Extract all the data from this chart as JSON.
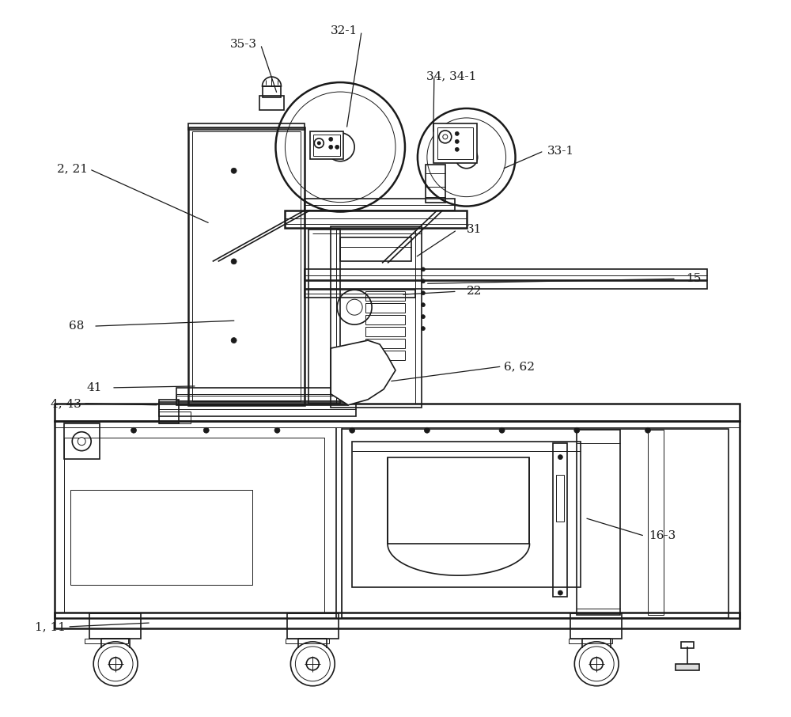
{
  "bg_color": "#ffffff",
  "line_color": "#1a1a1a",
  "lw_main": 1.8,
  "lw_med": 1.2,
  "lw_thin": 0.7,
  "labels": [
    [
      "35-3",
      307,
      55
    ],
    [
      "32-1",
      435,
      38
    ],
    [
      "34, 34-1",
      571,
      95
    ],
    [
      "33-1",
      710,
      190
    ],
    [
      "2, 21",
      90,
      213
    ],
    [
      "31",
      600,
      290
    ],
    [
      "15",
      878,
      352
    ],
    [
      "22",
      600,
      368
    ],
    [
      "68",
      95,
      412
    ],
    [
      "41",
      118,
      490
    ],
    [
      "6, 62",
      657,
      463
    ],
    [
      "4, 43",
      82,
      510
    ],
    [
      "16-3",
      838,
      678
    ],
    [
      "1, 11",
      62,
      793
    ]
  ],
  "leader_lines": [
    [
      307,
      55,
      350,
      118
    ],
    [
      435,
      38,
      438,
      162
    ],
    [
      571,
      95,
      548,
      168
    ],
    [
      710,
      190,
      635,
      213
    ],
    [
      90,
      213,
      265,
      282
    ],
    [
      600,
      290,
      525,
      325
    ],
    [
      878,
      352,
      538,
      358
    ],
    [
      600,
      368,
      507,
      372
    ],
    [
      95,
      412,
      298,
      405
    ],
    [
      118,
      490,
      248,
      488
    ],
    [
      657,
      463,
      492,
      482
    ],
    [
      82,
      510,
      200,
      512
    ],
    [
      838,
      678,
      740,
      655
    ],
    [
      62,
      793,
      190,
      788
    ]
  ]
}
